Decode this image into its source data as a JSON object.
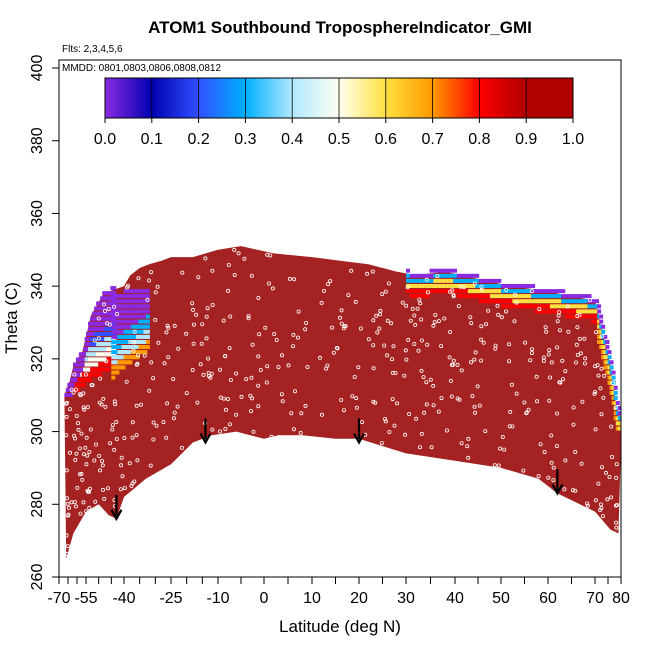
{
  "chart_data": {
    "type": "heatmap",
    "title": "ATOM1 Southbound TroposphereIndicator_GMI",
    "subtitle": "Flts: 2,3,4,5,6",
    "annotation": "MMDD: 0801,0803,0806,0808,0812",
    "xlabel": "Latitude (deg N)",
    "ylabel": "Theta (C)",
    "xlim": [
      -70,
      80
    ],
    "ylim": [
      260,
      400
    ],
    "x_ticks": [
      -70,
      -55,
      -40,
      -25,
      -10,
      0,
      10,
      20,
      30,
      40,
      50,
      60,
      70,
      80
    ],
    "x_tick_labels": [
      "-70",
      "-55",
      "-40",
      "-25",
      "-10",
      "0",
      "10",
      "20",
      "30",
      "40",
      "50",
      "60",
      "70",
      "80"
    ],
    "y_ticks": [
      260,
      280,
      300,
      320,
      340,
      360,
      380,
      400
    ],
    "y_tick_labels": [
      "260",
      "280",
      "300",
      "320",
      "340",
      "360",
      "380",
      "400"
    ],
    "colorbar": {
      "range": [
        0.0,
        1.0
      ],
      "tick_labels": [
        "0.0",
        "0.1",
        "0.2",
        "0.3",
        "0.4",
        "0.5",
        "0.6",
        "0.7",
        "0.8",
        "0.9",
        "1.0"
      ],
      "colors": [
        "#8a2be2",
        "#0000b0",
        "#3050ff",
        "#00b0ff",
        "#b0e8ff",
        "#fffff0",
        "#ffe040",
        "#ff9a00",
        "#ff0000",
        "#b00000"
      ]
    },
    "dominant_value": 1.0,
    "dominant_color": "#a52222",
    "lower_boundary": [
      [
        -66,
        265
      ],
      [
        -62,
        272
      ],
      [
        -55,
        278
      ],
      [
        -50,
        280
      ],
      [
        -46,
        277
      ],
      [
        -43,
        276
      ],
      [
        -40,
        282
      ],
      [
        -33,
        287
      ],
      [
        -25,
        291
      ],
      [
        -18,
        297
      ],
      [
        -12,
        299
      ],
      [
        -6,
        300
      ],
      [
        0,
        298
      ],
      [
        3,
        299
      ],
      [
        8,
        299
      ],
      [
        15,
        298
      ],
      [
        20,
        298
      ],
      [
        30,
        294
      ],
      [
        40,
        292
      ],
      [
        50,
        290
      ],
      [
        58,
        287
      ],
      [
        62,
        283
      ],
      [
        70,
        278
      ],
      [
        76,
        273
      ],
      [
        79,
        272
      ]
    ],
    "upper_boundary": [
      [
        -67,
        310
      ],
      [
        -64,
        314
      ],
      [
        -62,
        318
      ],
      [
        -57,
        322
      ],
      [
        -53,
        332
      ],
      [
        -48,
        338
      ],
      [
        -44,
        339
      ],
      [
        -40,
        340
      ],
      [
        -38,
        343
      ],
      [
        -35,
        345
      ],
      [
        -32,
        346
      ],
      [
        -28,
        347
      ],
      [
        -25,
        348
      ],
      [
        -18,
        348
      ],
      [
        -10,
        350
      ],
      [
        -5,
        351
      ],
      [
        2,
        349
      ],
      [
        10,
        348
      ],
      [
        16,
        347
      ],
      [
        22,
        346
      ],
      [
        28,
        344
      ],
      [
        32,
        343
      ],
      [
        38,
        344
      ],
      [
        45,
        342
      ],
      [
        52,
        340
      ],
      [
        58,
        339
      ],
      [
        62,
        338
      ],
      [
        66,
        337
      ],
      [
        70,
        336
      ],
      [
        73,
        327
      ],
      [
        76,
        318
      ],
      [
        78,
        308
      ],
      [
        80,
        303
      ],
      [
        80,
        296
      ]
    ],
    "low_value_regions": [
      {
        "value_range": [
          0.0,
          0.15
        ],
        "lat_range": [
          -67,
          -44
        ],
        "theta_range": [
          308,
          344
        ]
      },
      {
        "value_range": [
          0.0,
          0.5
        ],
        "lat_range": [
          -45,
          -33
        ],
        "theta_range": [
          312,
          340
        ]
      },
      {
        "value_range": [
          0.0,
          0.8
        ],
        "lat_range": [
          30,
          78
        ],
        "theta_range": [
          300,
          340
        ]
      }
    ],
    "arrows": [
      {
        "lat": -43,
        "theta": 276
      },
      {
        "lat": -14,
        "theta": 297
      },
      {
        "lat": 20,
        "theta": 297
      },
      {
        "lat": 62,
        "theta": 283
      }
    ],
    "grid": false,
    "legend": "colorbar-top"
  }
}
